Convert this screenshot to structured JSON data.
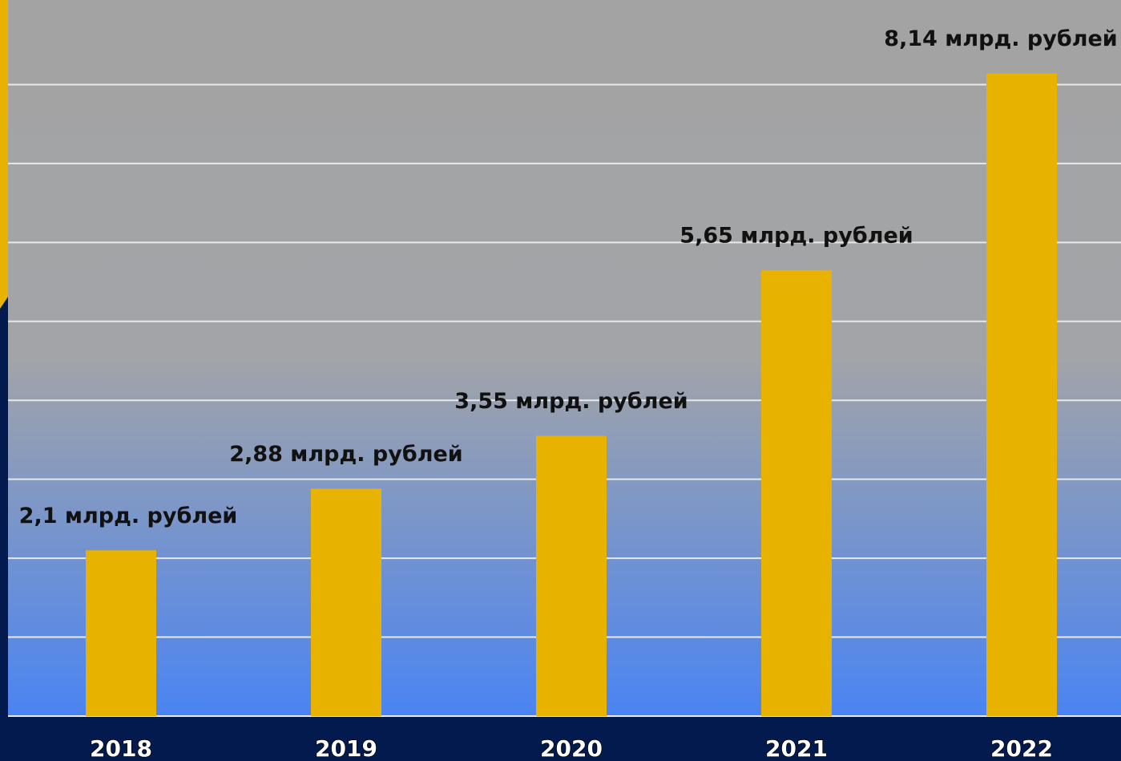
{
  "chart_data": {
    "type": "bar",
    "categories": [
      "2018",
      "2019",
      "2020",
      "2021",
      "2022"
    ],
    "values": [
      2.1,
      2.88,
      3.55,
      5.65,
      8.14
    ],
    "value_labels": [
      "2,1 млрд. рублей",
      "2,88 млрд. рублей",
      "3,55 млрд. рублей",
      "5,65 млрд. рублей",
      "8,14 млрд. рублей"
    ],
    "color": "#e8b200",
    "ylim": [
      0,
      9
    ],
    "yticks": [
      0,
      1,
      2,
      3,
      4,
      5,
      6,
      7,
      8
    ],
    "grid": true
  }
}
